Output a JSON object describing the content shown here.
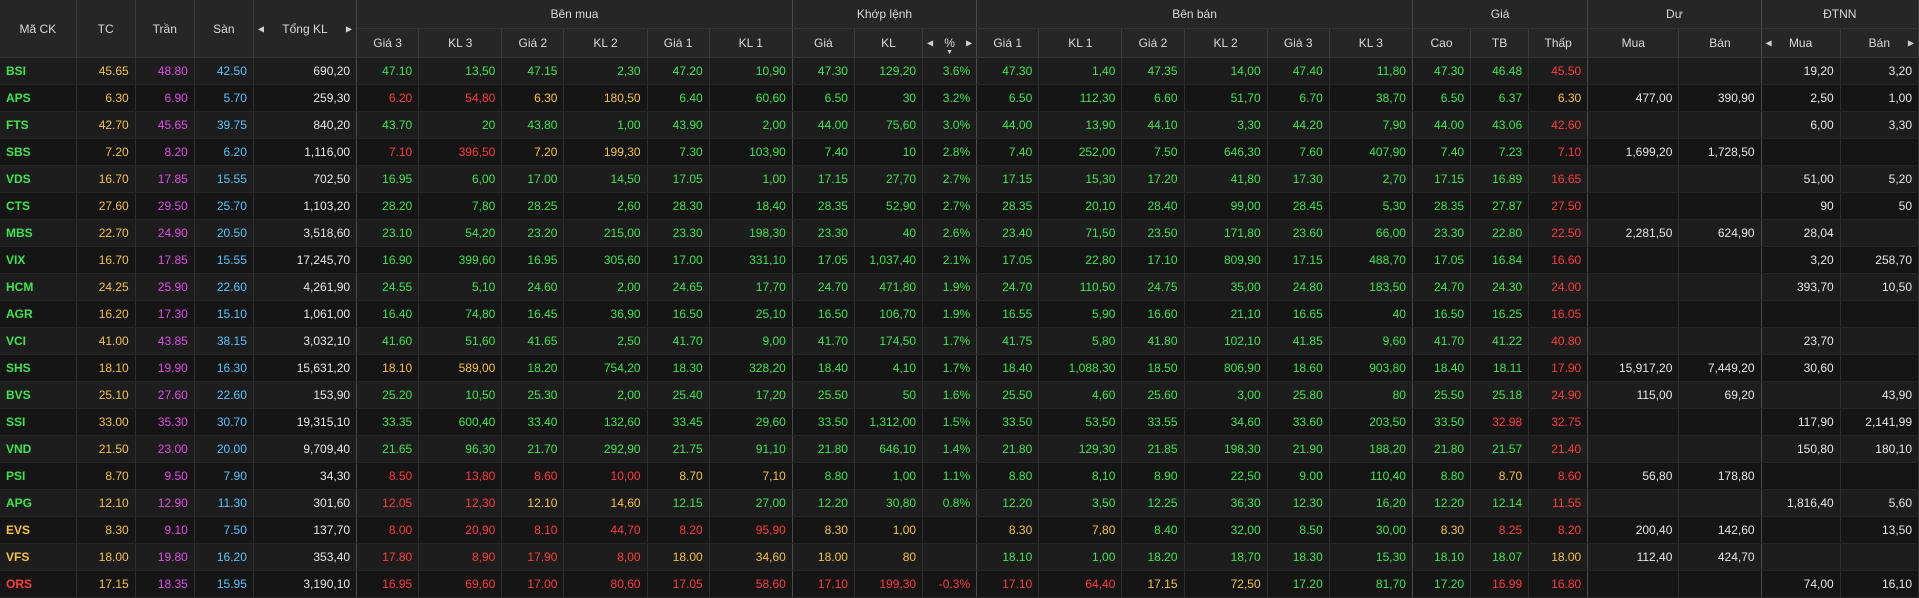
{
  "headers": {
    "ma_ck": "Mã CK",
    "tc": "TC",
    "tran": "Trần",
    "san": "Sàn",
    "tong_kl": "Tổng KL",
    "ben_mua": "Bên mua",
    "khop_lenh": "Khớp lệnh",
    "ben_ban": "Bên bán",
    "gia": "Giá",
    "du": "Dư",
    "dtnn": "ĐTNN",
    "gia3": "Giá 3",
    "kl3": "KL 3",
    "gia2": "Giá 2",
    "kl2": "KL 2",
    "gia1": "Giá 1",
    "kl1": "KL 1",
    "khop_gia": "Giá",
    "khop_kl": "KL",
    "khop_pct": "%",
    "cao": "Cao",
    "tb": "TB",
    "thap": "Thấp",
    "du_mua": "Mua",
    "du_ban": "Bán",
    "nn_mua": "Mua",
    "nn_ban": "Bán"
  },
  "colors": {
    "up": "#3ee54f",
    "down": "#ff3b3b",
    "ref": "#f5c342",
    "ceil": "#e14ce8",
    "floor": "#56c6ff",
    "plain": "#e6e6e6"
  },
  "rows": [
    {
      "sym": "BSI",
      "tc": "45.65",
      "tran": "48.80",
      "san": "42.50",
      "tkl": "690,20",
      "bg3": "47.10",
      "bk3": "13,50",
      "bg2": "47.15",
      "bk2": "2,30",
      "bg1": "47.20",
      "bk1": "10,90",
      "mg": "47.30",
      "mk": "129,20",
      "mp": "3.6%",
      "sg1": "47.30",
      "sk1": "1,40",
      "sg2": "47.35",
      "sk2": "14,00",
      "sg3": "47.40",
      "sk3": "11,80",
      "cao": "47.30",
      "tb": "46.48",
      "thap": "45.50",
      "dm": "",
      "db": "",
      "nm": "19,20",
      "nb": "3,20",
      "cl": {
        "sym": "up",
        "b3": "up",
        "b2": "up",
        "b1": "up",
        "m": "up",
        "s1": "up",
        "s2": "up",
        "s3": "up",
        "cao": "up",
        "tb": "up",
        "thap": "down"
      }
    },
    {
      "sym": "APS",
      "tc": "6.30",
      "tran": "6.90",
      "san": "5.70",
      "tkl": "259,30",
      "bg3": "6.20",
      "bk3": "54,80",
      "bg2": "6.30",
      "bk2": "180,50",
      "bg1": "6.40",
      "bk1": "60,60",
      "mg": "6.50",
      "mk": "30",
      "mp": "3.2%",
      "sg1": "6.50",
      "sk1": "112,30",
      "sg2": "6.60",
      "sk2": "51,70",
      "sg3": "6.70",
      "sk3": "38,70",
      "cao": "6.50",
      "tb": "6.37",
      "thap": "6.30",
      "dm": "477,00",
      "db": "390,90",
      "nm": "2,50",
      "nb": "1,00",
      "cl": {
        "sym": "up",
        "b3": "down",
        "b2": "ref",
        "b1": "up",
        "m": "up",
        "s1": "up",
        "s2": "up",
        "s3": "up",
        "cao": "up",
        "tb": "up",
        "thap": "ref"
      }
    },
    {
      "sym": "FTS",
      "tc": "42.70",
      "tran": "45.65",
      "san": "39.75",
      "tkl": "840,20",
      "bg3": "43.70",
      "bk3": "20",
      "bg2": "43.80",
      "bk2": "1,00",
      "bg1": "43.90",
      "bk1": "2,00",
      "mg": "44.00",
      "mk": "75,60",
      "mp": "3.0%",
      "sg1": "44.00",
      "sk1": "13,90",
      "sg2": "44.10",
      "sk2": "3,30",
      "sg3": "44.20",
      "sk3": "7,90",
      "cao": "44.00",
      "tb": "43.06",
      "thap": "42.60",
      "dm": "",
      "db": "",
      "nm": "6,00",
      "nb": "3,30",
      "cl": {
        "sym": "up",
        "b3": "up",
        "b2": "up",
        "b1": "up",
        "m": "up",
        "s1": "up",
        "s2": "up",
        "s3": "up",
        "cao": "up",
        "tb": "up",
        "thap": "down"
      }
    },
    {
      "sym": "SBS",
      "tc": "7.20",
      "tran": "8.20",
      "san": "6.20",
      "tkl": "1,116,00",
      "bg3": "7.10",
      "bk3": "396,50",
      "bg2": "7.20",
      "bk2": "199,30",
      "bg1": "7.30",
      "bk1": "103,90",
      "mg": "7.40",
      "mk": "10",
      "mp": "2.8%",
      "sg1": "7.40",
      "sk1": "252,00",
      "sg2": "7.50",
      "sk2": "646,30",
      "sg3": "7.60",
      "sk3": "407,90",
      "cao": "7.40",
      "tb": "7.23",
      "thap": "7.10",
      "dm": "1,699,20",
      "db": "1,728,50",
      "nm": "",
      "nb": "",
      "cl": {
        "sym": "up",
        "b3": "down",
        "b2": "ref",
        "b1": "up",
        "m": "up",
        "s1": "up",
        "s2": "up",
        "s3": "up",
        "cao": "up",
        "tb": "up",
        "thap": "down"
      }
    },
    {
      "sym": "VDS",
      "tc": "16.70",
      "tran": "17.85",
      "san": "15.55",
      "tkl": "702,50",
      "bg3": "16.95",
      "bk3": "6,00",
      "bg2": "17.00",
      "bk2": "14,50",
      "bg1": "17.05",
      "bk1": "1,00",
      "mg": "17.15",
      "mk": "27,70",
      "mp": "2.7%",
      "sg1": "17.15",
      "sk1": "15,30",
      "sg2": "17.20",
      "sk2": "41,80",
      "sg3": "17.30",
      "sk3": "2,70",
      "cao": "17.15",
      "tb": "16.89",
      "thap": "16.65",
      "dm": "",
      "db": "",
      "nm": "51,00",
      "nb": "5,20",
      "cl": {
        "sym": "up",
        "b3": "up",
        "b2": "up",
        "b1": "up",
        "m": "up",
        "s1": "up",
        "s2": "up",
        "s3": "up",
        "cao": "up",
        "tb": "up",
        "thap": "down"
      }
    },
    {
      "sym": "CTS",
      "tc": "27.60",
      "tran": "29.50",
      "san": "25.70",
      "tkl": "1,103,20",
      "bg3": "28.20",
      "bk3": "7,80",
      "bg2": "28.25",
      "bk2": "2,60",
      "bg1": "28.30",
      "bk1": "18,40",
      "mg": "28.35",
      "mk": "52,90",
      "mp": "2.7%",
      "sg1": "28.35",
      "sk1": "20,10",
      "sg2": "28.40",
      "sk2": "99,00",
      "sg3": "28.45",
      "sk3": "5,30",
      "cao": "28.35",
      "tb": "27.87",
      "thap": "27.50",
      "dm": "",
      "db": "",
      "nm": "90",
      "nb": "50",
      "cl": {
        "sym": "up",
        "b3": "up",
        "b2": "up",
        "b1": "up",
        "m": "up",
        "s1": "up",
        "s2": "up",
        "s3": "up",
        "cao": "up",
        "tb": "up",
        "thap": "down"
      }
    },
    {
      "sym": "MBS",
      "tc": "22.70",
      "tran": "24.90",
      "san": "20.50",
      "tkl": "3,518,60",
      "bg3": "23.10",
      "bk3": "54,20",
      "bg2": "23.20",
      "bk2": "215,00",
      "bg1": "23.30",
      "bk1": "198,30",
      "mg": "23.30",
      "mk": "40",
      "mp": "2.6%",
      "sg1": "23.40",
      "sk1": "71,50",
      "sg2": "23.50",
      "sk2": "171,80",
      "sg3": "23.60",
      "sk3": "66,00",
      "cao": "23.30",
      "tb": "22.80",
      "thap": "22.50",
      "dm": "2,281,50",
      "db": "624,90",
      "nm": "28,04",
      "nb": "",
      "cl": {
        "sym": "up",
        "b3": "up",
        "b2": "up",
        "b1": "up",
        "m": "up",
        "s1": "up",
        "s2": "up",
        "s3": "up",
        "cao": "up",
        "tb": "up",
        "thap": "down"
      }
    },
    {
      "sym": "VIX",
      "tc": "16.70",
      "tran": "17.85",
      "san": "15.55",
      "tkl": "17,245,70",
      "bg3": "16.90",
      "bk3": "399,60",
      "bg2": "16.95",
      "bk2": "305,60",
      "bg1": "17.00",
      "bk1": "331,10",
      "mg": "17.05",
      "mk": "1,037,40",
      "mp": "2.1%",
      "sg1": "17.05",
      "sk1": "22,80",
      "sg2": "17.10",
      "sk2": "809,90",
      "sg3": "17.15",
      "sk3": "488,70",
      "cao": "17.05",
      "tb": "16.84",
      "thap": "16.60",
      "dm": "",
      "db": "",
      "nm": "3,20",
      "nb": "258,70",
      "cl": {
        "sym": "up",
        "b3": "up",
        "b2": "up",
        "b1": "up",
        "m": "up",
        "s1": "up",
        "s2": "up",
        "s3": "up",
        "cao": "up",
        "tb": "up",
        "thap": "down"
      }
    },
    {
      "sym": "HCM",
      "tc": "24.25",
      "tran": "25.90",
      "san": "22.60",
      "tkl": "4,261,90",
      "bg3": "24.55",
      "bk3": "5,10",
      "bg2": "24.60",
      "bk2": "2,00",
      "bg1": "24.65",
      "bk1": "17,70",
      "mg": "24.70",
      "mk": "471,80",
      "mp": "1.9%",
      "sg1": "24.70",
      "sk1": "110,50",
      "sg2": "24.75",
      "sk2": "35,00",
      "sg3": "24.80",
      "sk3": "183,50",
      "cao": "24.70",
      "tb": "24.30",
      "thap": "24.00",
      "dm": "",
      "db": "",
      "nm": "393,70",
      "nb": "10,50",
      "cl": {
        "sym": "up",
        "b3": "up",
        "b2": "up",
        "b1": "up",
        "m": "up",
        "s1": "up",
        "s2": "up",
        "s3": "up",
        "cao": "up",
        "tb": "up",
        "thap": "down"
      }
    },
    {
      "sym": "AGR",
      "tc": "16.20",
      "tran": "17.30",
      "san": "15.10",
      "tkl": "1,061,00",
      "bg3": "16.40",
      "bk3": "74,80",
      "bg2": "16.45",
      "bk2": "36,90",
      "bg1": "16.50",
      "bk1": "25,10",
      "mg": "16.50",
      "mk": "106,70",
      "mp": "1.9%",
      "sg1": "16.55",
      "sk1": "5,90",
      "sg2": "16.60",
      "sk2": "21,10",
      "sg3": "16.65",
      "sk3": "40",
      "cao": "16.50",
      "tb": "16.25",
      "thap": "16.05",
      "dm": "",
      "db": "",
      "nm": "",
      "nb": "",
      "cl": {
        "sym": "up",
        "b3": "up",
        "b2": "up",
        "b1": "up",
        "m": "up",
        "s1": "up",
        "s2": "up",
        "s3": "up",
        "cao": "up",
        "tb": "up",
        "thap": "down"
      }
    },
    {
      "sym": "VCI",
      "tc": "41.00",
      "tran": "43.85",
      "san": "38.15",
      "tkl": "3,032,10",
      "bg3": "41.60",
      "bk3": "51,60",
      "bg2": "41.65",
      "bk2": "2,50",
      "bg1": "41.70",
      "bk1": "9,00",
      "mg": "41.70",
      "mk": "174,50",
      "mp": "1.7%",
      "sg1": "41.75",
      "sk1": "5,80",
      "sg2": "41.80",
      "sk2": "102,10",
      "sg3": "41.85",
      "sk3": "9,60",
      "cao": "41.70",
      "tb": "41.22",
      "thap": "40.80",
      "dm": "",
      "db": "",
      "nm": "23,70",
      "nb": "",
      "cl": {
        "sym": "up",
        "b3": "up",
        "b2": "up",
        "b1": "up",
        "m": "up",
        "s1": "up",
        "s2": "up",
        "s3": "up",
        "cao": "up",
        "tb": "up",
        "thap": "down"
      }
    },
    {
      "sym": "SHS",
      "tc": "18.10",
      "tran": "19.90",
      "san": "16.30",
      "tkl": "15,631,20",
      "bg3": "18.10",
      "bk3": "589,00",
      "bg2": "18.20",
      "bk2": "754,20",
      "bg1": "18.30",
      "bk1": "328,20",
      "mg": "18.40",
      "mk": "4,10",
      "mp": "1.7%",
      "sg1": "18.40",
      "sk1": "1,088,30",
      "sg2": "18.50",
      "sk2": "806,90",
      "sg3": "18.60",
      "sk3": "903,80",
      "cao": "18.40",
      "tb": "18.11",
      "thap": "17.90",
      "dm": "15,917,20",
      "db": "7,449,20",
      "nm": "30,60",
      "nb": "",
      "cl": {
        "sym": "up",
        "b3": "ref",
        "b2": "up",
        "b1": "up",
        "m": "up",
        "s1": "up",
        "s2": "up",
        "s3": "up",
        "cao": "up",
        "tb": "up",
        "thap": "down"
      }
    },
    {
      "sym": "BVS",
      "tc": "25.10",
      "tran": "27.60",
      "san": "22.60",
      "tkl": "153,90",
      "bg3": "25.20",
      "bk3": "10,50",
      "bg2": "25.30",
      "bk2": "2,00",
      "bg1": "25.40",
      "bk1": "17,20",
      "mg": "25.50",
      "mk": "50",
      "mp": "1.6%",
      "sg1": "25.50",
      "sk1": "4,60",
      "sg2": "25.60",
      "sk2": "3,00",
      "sg3": "25.80",
      "sk3": "80",
      "cao": "25.50",
      "tb": "25.18",
      "thap": "24.90",
      "dm": "115,00",
      "db": "69,20",
      "nm": "",
      "nb": "43,90",
      "cl": {
        "sym": "up",
        "b3": "up",
        "b2": "up",
        "b1": "up",
        "m": "up",
        "s1": "up",
        "s2": "up",
        "s3": "up",
        "cao": "up",
        "tb": "up",
        "thap": "down"
      }
    },
    {
      "sym": "SSI",
      "tc": "33.00",
      "tran": "35.30",
      "san": "30.70",
      "tkl": "19,315,10",
      "bg3": "33.35",
      "bk3": "600,40",
      "bg2": "33.40",
      "bk2": "132,60",
      "bg1": "33.45",
      "bk1": "29,60",
      "mg": "33.50",
      "mk": "1,312,00",
      "mp": "1.5%",
      "sg1": "33.50",
      "sk1": "53,50",
      "sg2": "33.55",
      "sk2": "34,60",
      "sg3": "33.60",
      "sk3": "203,50",
      "cao": "33.50",
      "tb": "32.98",
      "thap": "32.75",
      "dm": "",
      "db": "",
      "nm": "117,90",
      "nb": "2,141,99",
      "cl": {
        "sym": "up",
        "b3": "up",
        "b2": "up",
        "b1": "up",
        "m": "up",
        "s1": "up",
        "s2": "up",
        "s3": "up",
        "cao": "up",
        "tb": "down",
        "thap": "down"
      }
    },
    {
      "sym": "VND",
      "tc": "21.50",
      "tran": "23.00",
      "san": "20.00",
      "tkl": "9,709,40",
      "bg3": "21.65",
      "bk3": "96,30",
      "bg2": "21.70",
      "bk2": "292,90",
      "bg1": "21.75",
      "bk1": "91,10",
      "mg": "21.80",
      "mk": "646,10",
      "mp": "1.4%",
      "sg1": "21.80",
      "sk1": "129,30",
      "sg2": "21.85",
      "sk2": "198,30",
      "sg3": "21.90",
      "sk3": "188,20",
      "cao": "21.80",
      "tb": "21.57",
      "thap": "21.40",
      "dm": "",
      "db": "",
      "nm": "150,80",
      "nb": "180,10",
      "cl": {
        "sym": "up",
        "b3": "up",
        "b2": "up",
        "b1": "up",
        "m": "up",
        "s1": "up",
        "s2": "up",
        "s3": "up",
        "cao": "up",
        "tb": "up",
        "thap": "down"
      }
    },
    {
      "sym": "PSI",
      "tc": "8.70",
      "tran": "9.50",
      "san": "7.90",
      "tkl": "34,30",
      "bg3": "8.50",
      "bk3": "13,80",
      "bg2": "8.60",
      "bk2": "10,00",
      "bg1": "8.70",
      "bk1": "7,10",
      "mg": "8.80",
      "mk": "1,00",
      "mp": "1.1%",
      "sg1": "8.80",
      "sk1": "8,10",
      "sg2": "8.90",
      "sk2": "22,50",
      "sg3": "9.00",
      "sk3": "110,40",
      "cao": "8.80",
      "tb": "8.70",
      "thap": "8.60",
      "dm": "56,80",
      "db": "178,80",
      "nm": "",
      "nb": "",
      "cl": {
        "sym": "up",
        "b3": "down",
        "b2": "down",
        "b1": "ref",
        "m": "up",
        "s1": "up",
        "s2": "up",
        "s3": "up",
        "cao": "up",
        "tb": "ref",
        "thap": "down"
      }
    },
    {
      "sym": "APG",
      "tc": "12.10",
      "tran": "12.90",
      "san": "11.30",
      "tkl": "301,60",
      "bg3": "12.05",
      "bk3": "12,30",
      "bg2": "12.10",
      "bk2": "14,60",
      "bg1": "12.15",
      "bk1": "27,00",
      "mg": "12.20",
      "mk": "30,80",
      "mp": "0.8%",
      "sg1": "12.20",
      "sk1": "3,50",
      "sg2": "12.25",
      "sk2": "36,30",
      "sg3": "12.30",
      "sk3": "16,20",
      "cao": "12.20",
      "tb": "12.14",
      "thap": "11.55",
      "dm": "",
      "db": "",
      "nm": "1,816,40",
      "nb": "5,60",
      "cl": {
        "sym": "up",
        "b3": "down",
        "b2": "ref",
        "b1": "up",
        "m": "up",
        "s1": "up",
        "s2": "up",
        "s3": "up",
        "cao": "up",
        "tb": "up",
        "thap": "down"
      }
    },
    {
      "sym": "EVS",
      "tc": "8.30",
      "tran": "9.10",
      "san": "7.50",
      "tkl": "137,70",
      "bg3": "8.00",
      "bk3": "20,90",
      "bg2": "8.10",
      "bk2": "44,70",
      "bg1": "8.20",
      "bk1": "95,90",
      "mg": "8.30",
      "mk": "1,00",
      "mp": "",
      "sg1": "8.30",
      "sk1": "7,80",
      "sg2": "8.40",
      "sk2": "32,00",
      "sg3": "8.50",
      "sk3": "30,00",
      "cao": "8.30",
      "tb": "8.25",
      "thap": "8.20",
      "dm": "200,40",
      "db": "142,60",
      "nm": "",
      "nb": "13,50",
      "cl": {
        "sym": "ref",
        "b3": "down",
        "b2": "down",
        "b1": "down",
        "m": "ref",
        "s1": "ref",
        "s2": "up",
        "s3": "up",
        "cao": "ref",
        "tb": "down",
        "thap": "down"
      }
    },
    {
      "sym": "VFS",
      "tc": "18.00",
      "tran": "19.80",
      "san": "16.20",
      "tkl": "353,40",
      "bg3": "17.80",
      "bk3": "8,90",
      "bg2": "17.90",
      "bk2": "8,00",
      "bg1": "18.00",
      "bk1": "34,60",
      "mg": "18.00",
      "mk": "80",
      "mp": "",
      "sg1": "18.10",
      "sk1": "1,00",
      "sg2": "18.20",
      "sk2": "18,70",
      "sg3": "18.30",
      "sk3": "15,30",
      "cao": "18.10",
      "tb": "18.07",
      "thap": "18.00",
      "dm": "112,40",
      "db": "424,70",
      "nm": "",
      "nb": "",
      "cl": {
        "sym": "ref",
        "b3": "down",
        "b2": "down",
        "b1": "ref",
        "m": "ref",
        "s1": "up",
        "s2": "up",
        "s3": "up",
        "cao": "up",
        "tb": "up",
        "thap": "ref"
      }
    },
    {
      "sym": "ORS",
      "tc": "17.15",
      "tran": "18.35",
      "san": "15.95",
      "tkl": "3,190,10",
      "bg3": "16.95",
      "bk3": "69,60",
      "bg2": "17.00",
      "bk2": "80,60",
      "bg1": "17.05",
      "bk1": "58,60",
      "mg": "17.10",
      "mk": "199,30",
      "mp": "-0.3%",
      "sg1": "17.10",
      "sk1": "64,40",
      "sg2": "17.15",
      "sk2": "72,50",
      "sg3": "17.20",
      "sk3": "81,70",
      "cao": "17.20",
      "tb": "16.99",
      "thap": "16.80",
      "dm": "",
      "db": "",
      "nm": "74,00",
      "nb": "16,10",
      "cl": {
        "sym": "down",
        "b3": "down",
        "b2": "down",
        "b1": "down",
        "m": "down",
        "s1": "down",
        "s2": "ref",
        "s3": "up",
        "cao": "up",
        "tb": "down",
        "thap": "down"
      }
    }
  ]
}
